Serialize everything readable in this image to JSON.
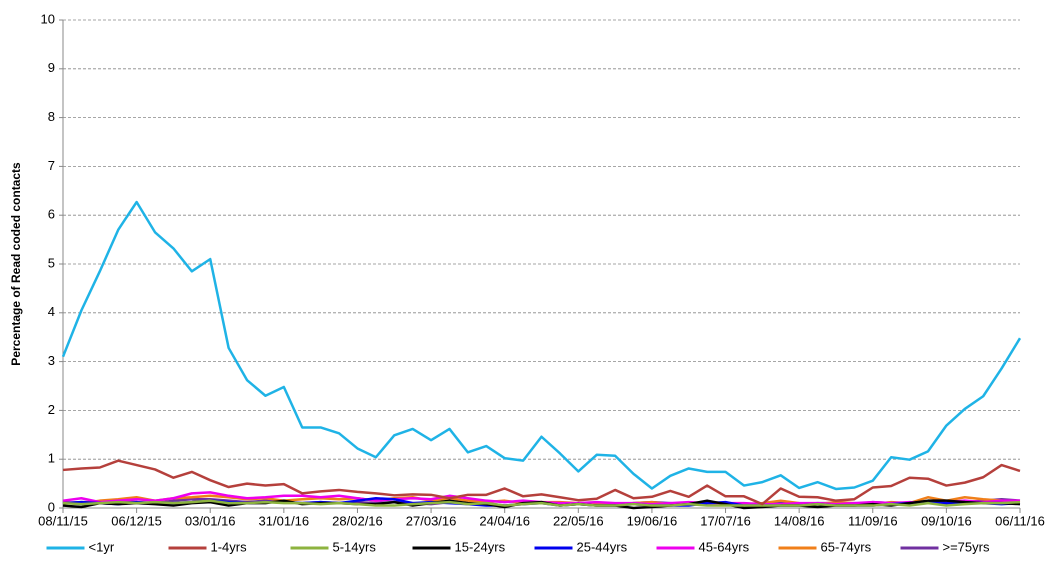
{
  "chart_data": {
    "type": "line",
    "y_label": "Percentage of Read coded contacts",
    "categories": [
      "08/11/15",
      null,
      null,
      null,
      "06/12/15",
      null,
      null,
      null,
      "03/01/16",
      null,
      null,
      null,
      "31/01/16",
      null,
      null,
      null,
      "28/02/16",
      null,
      null,
      null,
      "27/03/16",
      null,
      null,
      null,
      "24/04/16",
      null,
      null,
      null,
      "22/05/16",
      null,
      null,
      null,
      "19/06/16",
      null,
      null,
      null,
      "17/07/16",
      null,
      null,
      null,
      "14/08/16",
      null,
      null,
      null,
      "11/09/16",
      null,
      null,
      null,
      "09/10/16",
      null,
      null,
      null,
      "06/11/16"
    ],
    "ylim": [
      0,
      10
    ],
    "yticks": [
      0,
      1,
      2,
      3,
      4,
      5,
      6,
      7,
      8,
      9,
      10
    ],
    "grid": true,
    "legend": "bottom",
    "series": [
      {
        "name": "<1yr",
        "color": "#1fb3e6",
        "values": [
          3.1,
          4.05,
          4.85,
          5.7,
          6.27,
          5.65,
          5.32,
          4.85,
          5.1,
          3.28,
          2.62,
          2.3,
          2.48,
          1.65,
          1.65,
          1.53,
          1.22,
          1.04,
          1.49,
          1.62,
          1.39,
          1.62,
          1.14,
          1.27,
          1.02,
          0.97,
          1.46,
          1.12,
          0.75,
          1.09,
          1.07,
          0.7,
          0.4,
          0.66,
          0.81,
          0.74,
          0.74,
          0.46,
          0.53,
          0.67,
          0.41,
          0.53,
          0.39,
          0.42,
          0.56,
          1.04,
          0.99,
          1.16,
          1.69,
          2.03,
          2.29,
          2.86,
          3.48
        ]
      },
      {
        "name": "1-4yrs",
        "color": "#b5403c",
        "values": [
          0.78,
          0.81,
          0.83,
          0.97,
          0.88,
          0.79,
          0.62,
          0.74,
          0.57,
          0.43,
          0.5,
          0.46,
          0.49,
          0.3,
          0.34,
          0.37,
          0.33,
          0.3,
          0.26,
          0.28,
          0.27,
          0.2,
          0.27,
          0.27,
          0.4,
          0.24,
          0.28,
          0.22,
          0.16,
          0.19,
          0.37,
          0.2,
          0.23,
          0.35,
          0.23,
          0.46,
          0.24,
          0.24,
          0.08,
          0.4,
          0.23,
          0.22,
          0.15,
          0.18,
          0.42,
          0.45,
          0.62,
          0.6,
          0.46,
          0.52,
          0.63,
          0.88,
          0.76
        ]
      },
      {
        "name": "5-14yrs",
        "color": "#8db33f",
        "values": [
          0.1,
          0.08,
          0.1,
          0.12,
          0.1,
          0.12,
          0.1,
          0.12,
          0.15,
          0.1,
          0.1,
          0.12,
          0.1,
          0.1,
          0.08,
          0.1,
          0.08,
          0.05,
          0.05,
          0.08,
          0.1,
          0.12,
          0.08,
          0.1,
          0.05,
          0.08,
          0.1,
          0.05,
          0.08,
          0.05,
          0.05,
          0.08,
          0.05,
          0.05,
          0.08,
          0.05,
          0.05,
          0.05,
          0.05,
          0.05,
          0.05,
          0.08,
          0.05,
          0.05,
          0.05,
          0.08,
          0.05,
          0.1,
          0.05,
          0.08,
          0.1,
          0.1,
          0.12
        ]
      },
      {
        "name": "15-24yrs",
        "color": "#000000",
        "values": [
          0.05,
          0.02,
          0.1,
          0.08,
          0.1,
          0.08,
          0.05,
          0.1,
          0.12,
          0.05,
          0.1,
          0.1,
          0.15,
          0.08,
          0.1,
          0.1,
          0.08,
          0.08,
          0.12,
          0.05,
          0.1,
          0.15,
          0.1,
          0.08,
          0.02,
          0.1,
          0.12,
          0.05,
          0.08,
          0.05,
          0.05,
          0,
          0.02,
          0.05,
          0.08,
          0.15,
          0.08,
          0,
          0.02,
          0.05,
          0.05,
          0.02,
          0.05,
          0.05,
          0.08,
          0.05,
          0.1,
          0.15,
          0.15,
          0.12,
          0.1,
          0.1,
          0.08
        ]
      },
      {
        "name": "25-44yrs",
        "color": "#0000ee",
        "values": [
          0.1,
          0.12,
          0.1,
          0.08,
          0.12,
          0.1,
          0.1,
          0.12,
          0.15,
          0.12,
          0.1,
          0.12,
          0.12,
          0.1,
          0.12,
          0.1,
          0.15,
          0.2,
          0.18,
          0.1,
          0.12,
          0.1,
          0.08,
          0.05,
          0.05,
          0.08,
          0.1,
          0.05,
          0.08,
          0.05,
          0.05,
          0.08,
          0.05,
          0.05,
          0.05,
          0.1,
          0.12,
          0.05,
          0.05,
          0.05,
          0.05,
          0.08,
          0.05,
          0.05,
          0.05,
          0.08,
          0.1,
          0.12,
          0.1,
          0.12,
          0.1,
          0.08,
          0.1
        ]
      },
      {
        "name": "45-64yrs",
        "color": "#ee00ee",
        "values": [
          0.15,
          0.2,
          0.12,
          0.15,
          0.18,
          0.15,
          0.2,
          0.3,
          0.32,
          0.25,
          0.2,
          0.22,
          0.25,
          0.25,
          0.22,
          0.25,
          0.2,
          0.15,
          0.18,
          0.2,
          0.18,
          0.25,
          0.2,
          0.15,
          0.12,
          0.15,
          0.12,
          0.1,
          0.1,
          0.12,
          0.1,
          0.1,
          0.08,
          0.1,
          0.12,
          0.1,
          0.1,
          0.1,
          0.08,
          0.08,
          0.1,
          0.1,
          0.08,
          0.1,
          0.12,
          0.1,
          0.12,
          0.1,
          0.12,
          0.15,
          0.12,
          0.15,
          0.15
        ]
      },
      {
        "name": "65-74yrs",
        "color": "#f07f1a",
        "values": [
          0.12,
          0.1,
          0.15,
          0.18,
          0.22,
          0.15,
          0.2,
          0.22,
          0.25,
          0.22,
          0.18,
          0.2,
          0.15,
          0.18,
          0.2,
          0.18,
          0.2,
          0.15,
          0.2,
          0.22,
          0.15,
          0.2,
          0.15,
          0.12,
          0.15,
          0.1,
          0.12,
          0.12,
          0.1,
          0.1,
          0.08,
          0.1,
          0.12,
          0.08,
          0.1,
          0.12,
          0.1,
          0.08,
          0.1,
          0.15,
          0.1,
          0.08,
          0.12,
          0.1,
          0.08,
          0.12,
          0.1,
          0.22,
          0.15,
          0.22,
          0.18,
          0.15,
          0.12
        ]
      },
      {
        "name": ">=75yrs",
        "color": "#7030a0",
        "values": [
          0.1,
          0.12,
          0.12,
          0.15,
          0.12,
          0.1,
          0.15,
          0.18,
          0.18,
          0.15,
          0.12,
          0.15,
          0.12,
          0.1,
          0.12,
          0.1,
          0.12,
          0.1,
          0.12,
          0.1,
          0.08,
          0.12,
          0.1,
          0.1,
          0.05,
          0.08,
          0.12,
          0.1,
          0.08,
          0.1,
          0.05,
          0.1,
          0.12,
          0.1,
          0.08,
          0.1,
          0.1,
          0.08,
          0.08,
          0.1,
          0.08,
          0.1,
          0.1,
          0.08,
          0.12,
          0.1,
          0.1,
          0.12,
          0.1,
          0.12,
          0.15,
          0.18,
          0.15
        ]
      }
    ]
  }
}
